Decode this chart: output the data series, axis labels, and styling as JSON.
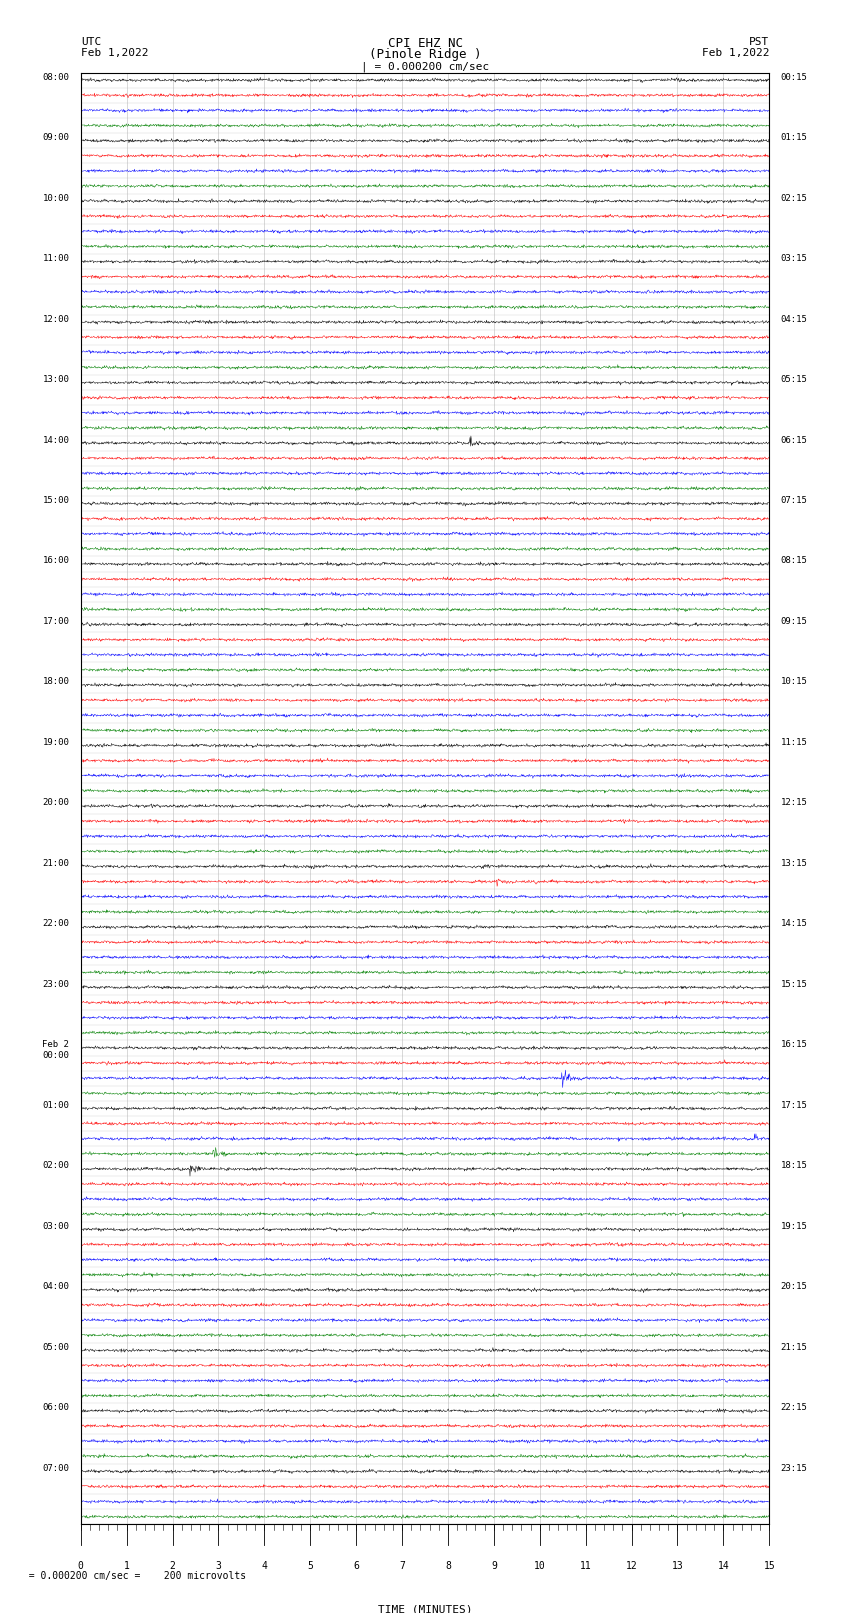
{
  "title_line1": "CPI EHZ NC",
  "title_line2": "(Pinole Ridge )",
  "scale_label": "| = 0.000200 cm/sec",
  "xlabel": "TIME (MINUTES)",
  "bottom_note": "  = 0.000200 cm/sec =    200 microvolts",
  "num_rows": 96,
  "colors_cycle": [
    "black",
    "red",
    "blue",
    "green"
  ],
  "bg_color": "white",
  "amplitude_scale": 0.3,
  "fig_width": 8.5,
  "fig_height": 16.13,
  "left_time_labels": [
    "08:00",
    "09:00",
    "10:00",
    "11:00",
    "12:00",
    "13:00",
    "14:00",
    "15:00",
    "16:00",
    "17:00",
    "18:00",
    "19:00",
    "20:00",
    "21:00",
    "22:00",
    "23:00",
    "Feb 2\n00:00",
    "01:00",
    "02:00",
    "03:00",
    "04:00",
    "05:00",
    "06:00",
    "07:00"
  ],
  "right_time_labels": [
    "00:15",
    "01:15",
    "02:15",
    "03:15",
    "04:15",
    "05:15",
    "06:15",
    "07:15",
    "08:15",
    "09:15",
    "10:15",
    "11:15",
    "12:15",
    "13:15",
    "14:15",
    "15:15",
    "16:15",
    "17:15",
    "18:15",
    "19:15",
    "20:15",
    "21:15",
    "22:15",
    "23:15"
  ],
  "grid_minor_color": "#bbbbbb",
  "grid_major_color": "#999999",
  "special_events": [
    {
      "row": 24,
      "minute": 8.6,
      "amp": 2.5
    },
    {
      "row": 52,
      "minute": 8.8,
      "amp": 2.0
    },
    {
      "row": 53,
      "minute": 9.2,
      "amp": 2.0
    },
    {
      "row": 66,
      "minute": 10.6,
      "color_override": "blue",
      "amp": 5.0
    },
    {
      "row": 70,
      "minute": 14.8,
      "amp": 2.0
    },
    {
      "row": 71,
      "minute": 3.0,
      "amp": 2.5
    },
    {
      "row": 72,
      "minute": 2.5,
      "amp": 2.5
    }
  ]
}
